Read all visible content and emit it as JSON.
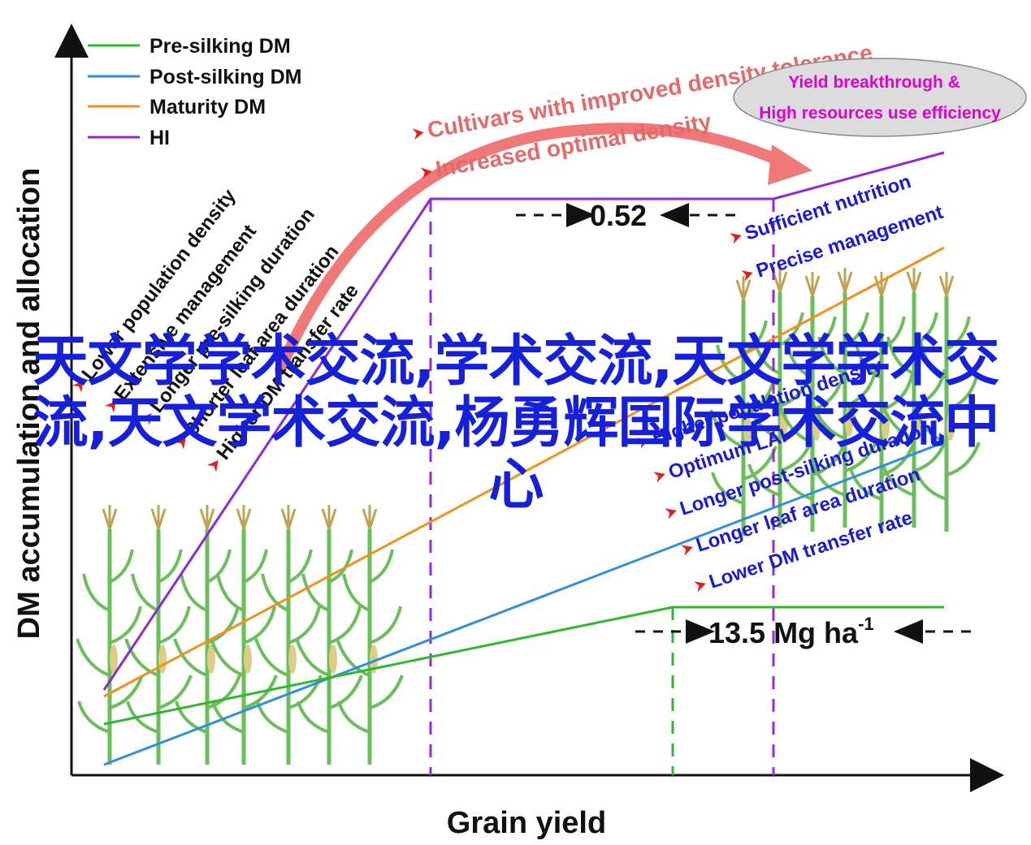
{
  "axes": {
    "x_title": "Grain yield",
    "y_title": "DM accumulation and allocation"
  },
  "legend": [
    {
      "label": "Pre-silking DM",
      "color": "#2db82d"
    },
    {
      "label": "Post-silking DM",
      "color": "#2f8fd8"
    },
    {
      "label": "Maturity DM",
      "color": "#f0901e"
    },
    {
      "label": "HI",
      "color": "#8e2ad0"
    }
  ],
  "left_factors": [
    "Lower population density",
    "Extensive management",
    "Longer pre-silking duration",
    "Shorter leaf area duration",
    "Higher DM transfer rate"
  ],
  "right_factors": [
    "Higher population density",
    "Optimum LAI",
    "Longer post-silking duration",
    "Longer leaf area duration",
    "Lower DM transfer rate"
  ],
  "top_factors": [
    "Cultivars with improved density tolerance",
    "Increased optimal density"
  ],
  "management_factors": [
    "Sufficient nutrition",
    "Precise management"
  ],
  "ellipse": {
    "line1": "Yield breakthrough &",
    "line2": "High resources use efficiency"
  },
  "hi_value": "0.52",
  "yield_value": "13.5 Mg ha",
  "yield_unit_exponent": "-1",
  "watermark": "天文学学术交流,学术交流,天文学学术交流,天文学术交流,杨勇辉国际学术交流中心",
  "colors": {
    "pre": "#2db82d",
    "post": "#2f8fd8",
    "maturity": "#f0901e",
    "hi": "#8e2ad0",
    "arrow": "#f07878",
    "factor_arrow": "#e02020",
    "plant": "#5cb84a"
  }
}
